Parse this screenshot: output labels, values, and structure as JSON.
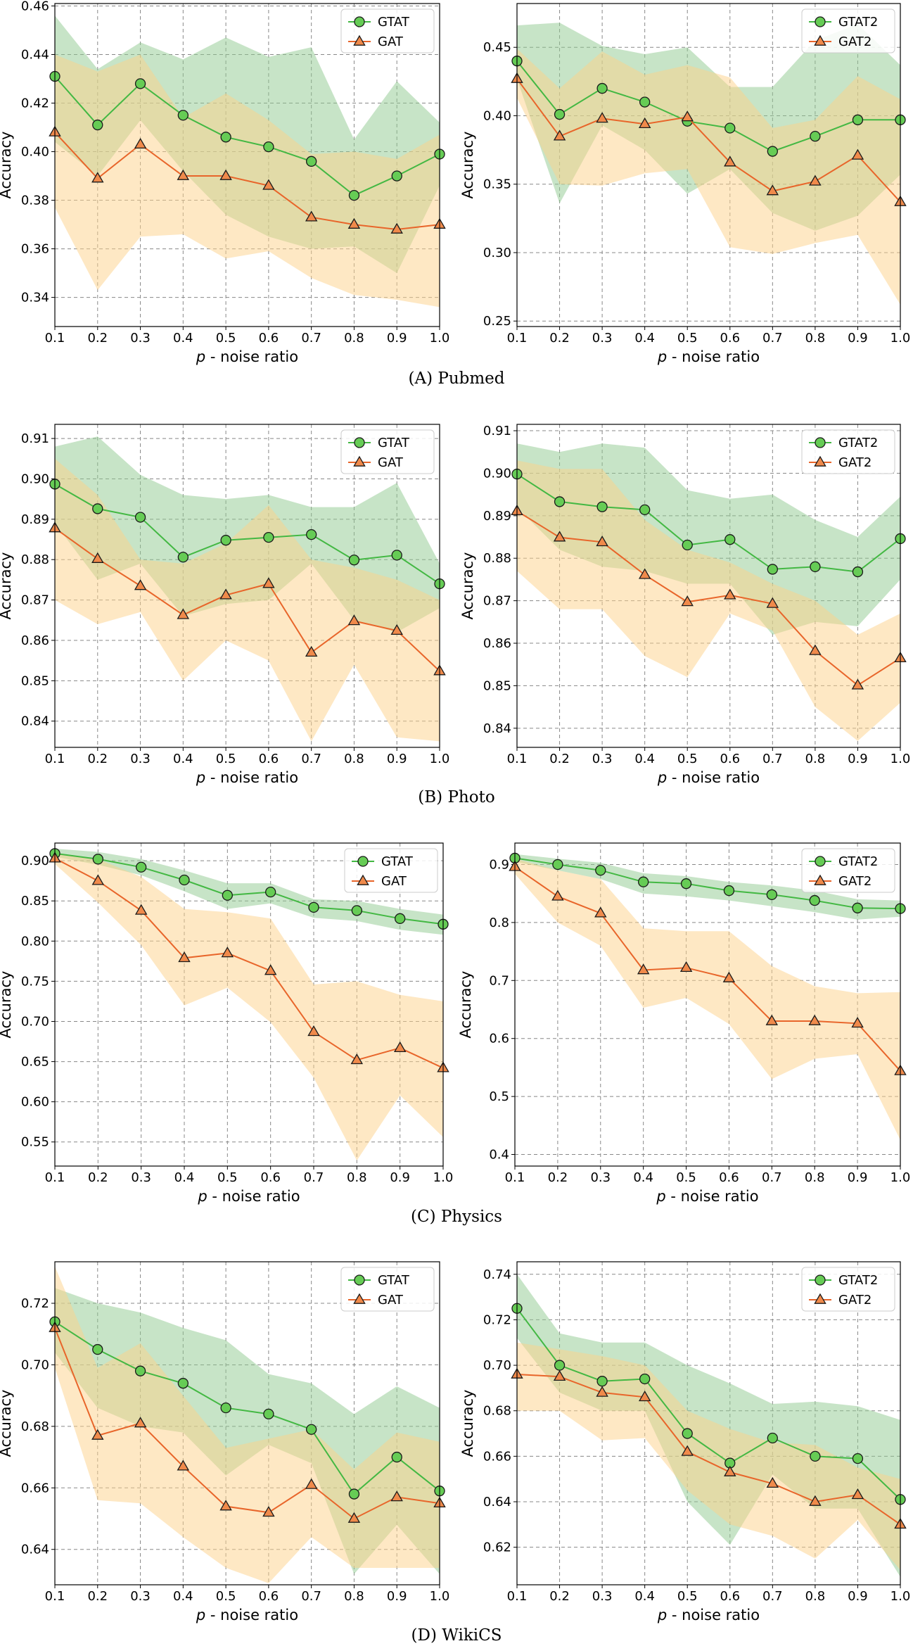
{
  "colors": {
    "green_line": "#43b843",
    "green_marker": "#66cc55",
    "green_band": "#8fc98f",
    "orange_line": "#e8652a",
    "orange_marker": "#f08a4b",
    "orange_band": "#fdd28a"
  },
  "captions": [
    "(A) Pubmed",
    "(B) Photo",
    "(C) Physics",
    "(D) WikiCS"
  ],
  "chart_data": [
    {
      "id": "A-left",
      "type": "line",
      "caption": "(A) Pubmed",
      "xlabel": "p - noise ratio",
      "xlabel_italic": "p",
      "xlabel_rest": " - noise ratio",
      "ylabel": "Accuracy",
      "x": [
        0.1,
        0.2,
        0.3,
        0.4,
        0.5,
        0.6,
        0.7,
        0.8,
        0.9,
        1.0
      ],
      "xticks": [
        "0.1",
        "0.2",
        "0.3",
        "0.4",
        "0.5",
        "0.6",
        "0.7",
        "0.8",
        "0.9",
        "1.0"
      ],
      "ylim": [
        0.328,
        0.461
      ],
      "yticks": [
        0.34,
        0.36,
        0.38,
        0.4,
        0.42,
        0.44,
        0.46
      ],
      "ytick_labels": [
        "0.34",
        "0.36",
        "0.38",
        "0.40",
        "0.42",
        "0.44",
        "0.46"
      ],
      "legend": "top-right",
      "series": [
        {
          "name": "GTAT",
          "marker": "circle",
          "values": [
            0.431,
            0.411,
            0.428,
            0.415,
            0.406,
            0.402,
            0.396,
            0.382,
            0.39,
            0.399
          ],
          "lower": [
            0.404,
            0.39,
            0.413,
            0.392,
            0.374,
            0.365,
            0.36,
            0.361,
            0.35,
            0.386
          ],
          "upper": [
            0.456,
            0.434,
            0.445,
            0.438,
            0.447,
            0.439,
            0.443,
            0.405,
            0.429,
            0.412
          ]
        },
        {
          "name": "GAT",
          "marker": "triangle",
          "values": [
            0.408,
            0.389,
            0.403,
            0.39,
            0.39,
            0.386,
            0.373,
            0.37,
            0.368,
            0.37
          ],
          "lower": [
            0.377,
            0.343,
            0.365,
            0.366,
            0.356,
            0.359,
            0.348,
            0.341,
            0.339,
            0.336
          ],
          "upper": [
            0.44,
            0.433,
            0.44,
            0.414,
            0.424,
            0.413,
            0.399,
            0.4,
            0.397,
            0.407
          ]
        }
      ]
    },
    {
      "id": "A-right",
      "type": "line",
      "caption": "(A) Pubmed",
      "xlabel": "p - noise ratio",
      "xlabel_italic": "p",
      "xlabel_rest": " - noise ratio",
      "ylabel": "Accuracy",
      "x": [
        0.1,
        0.2,
        0.3,
        0.4,
        0.5,
        0.6,
        0.7,
        0.8,
        0.9,
        1.0
      ],
      "xticks": [
        "0.1",
        "0.2",
        "0.3",
        "0.4",
        "0.5",
        "0.6",
        "0.7",
        "0.8",
        "0.9",
        "1.0"
      ],
      "ylim": [
        0.246,
        0.482
      ],
      "yticks": [
        0.25,
        0.3,
        0.35,
        0.4,
        0.45
      ],
      "ytick_labels": [
        "0.25",
        "0.30",
        "0.35",
        "0.40",
        "0.45"
      ],
      "legend": "top-right",
      "series": [
        {
          "name": "GTAT2",
          "marker": "circle",
          "values": [
            0.44,
            0.401,
            0.42,
            0.41,
            0.396,
            0.391,
            0.374,
            0.385,
            0.397,
            0.397
          ],
          "lower": [
            0.427,
            0.336,
            0.393,
            0.375,
            0.343,
            0.361,
            0.329,
            0.316,
            0.327,
            0.357
          ],
          "upper": [
            0.466,
            0.468,
            0.451,
            0.445,
            0.45,
            0.421,
            0.421,
            0.455,
            0.467,
            0.437
          ]
        },
        {
          "name": "GAT2",
          "marker": "triangle",
          "values": [
            0.427,
            0.385,
            0.398,
            0.394,
            0.399,
            0.366,
            0.345,
            0.352,
            0.371,
            0.337
          ],
          "lower": [
            0.413,
            0.35,
            0.349,
            0.358,
            0.361,
            0.304,
            0.299,
            0.307,
            0.313,
            0.262
          ],
          "upper": [
            0.449,
            0.42,
            0.447,
            0.43,
            0.437,
            0.428,
            0.391,
            0.397,
            0.429,
            0.412
          ]
        }
      ]
    },
    {
      "id": "B-left",
      "type": "line",
      "caption": "(B) Photo",
      "xlabel": "p - noise ratio",
      "xlabel_italic": "p",
      "xlabel_rest": " - noise ratio",
      "ylabel": "Accuracy",
      "x": [
        0.1,
        0.2,
        0.3,
        0.4,
        0.5,
        0.6,
        0.7,
        0.8,
        0.9,
        1.0
      ],
      "xticks": [
        "0.1",
        "0.2",
        "0.3",
        "0.4",
        "0.5",
        "0.6",
        "0.7",
        "0.8",
        "0.9",
        "1.0"
      ],
      "ylim": [
        0.8335,
        0.9135
      ],
      "yticks": [
        0.84,
        0.85,
        0.86,
        0.87,
        0.88,
        0.89,
        0.9,
        0.91
      ],
      "ytick_labels": [
        "0.84",
        "0.85",
        "0.86",
        "0.87",
        "0.88",
        "0.89",
        "0.90",
        "0.91"
      ],
      "legend": "top-right",
      "series": [
        {
          "name": "GTAT",
          "marker": "circle",
          "values": [
            0.8987,
            0.8926,
            0.8905,
            0.8806,
            0.8848,
            0.8855,
            0.8862,
            0.8799,
            0.8811,
            0.874
          ],
          "lower": [
            0.889,
            0.875,
            0.879,
            0.866,
            0.869,
            0.87,
            0.879,
            0.865,
            0.862,
            0.868
          ],
          "upper": [
            0.908,
            0.9105,
            0.901,
            0.896,
            0.895,
            0.896,
            0.893,
            0.893,
            0.899,
            0.879
          ]
        },
        {
          "name": "GAT",
          "marker": "triangle",
          "values": [
            0.8878,
            0.8802,
            0.8735,
            0.8663,
            0.8712,
            0.874,
            0.857,
            0.8648,
            0.8624,
            0.8524
          ],
          "lower": [
            0.87,
            0.864,
            0.867,
            0.85,
            0.86,
            0.855,
            0.835,
            0.854,
            0.836,
            0.835
          ],
          "upper": [
            0.905,
            0.896,
            0.88,
            0.879,
            0.884,
            0.8935,
            0.88,
            0.878,
            0.875,
            0.87
          ]
        }
      ]
    },
    {
      "id": "B-right",
      "type": "line",
      "caption": "(B) Photo",
      "xlabel": "p - noise ratio",
      "xlabel_italic": "p",
      "xlabel_rest": " - noise ratio",
      "ylabel": "Accuracy",
      "x": [
        0.1,
        0.2,
        0.3,
        0.4,
        0.5,
        0.6,
        0.7,
        0.8,
        0.9,
        1.0
      ],
      "xticks": [
        "0.1",
        "0.2",
        "0.3",
        "0.4",
        "0.5",
        "0.6",
        "0.7",
        "0.8",
        "0.9",
        "1.0"
      ],
      "ylim": [
        0.8355,
        0.9115
      ],
      "yticks": [
        0.84,
        0.85,
        0.86,
        0.87,
        0.88,
        0.89,
        0.9,
        0.91
      ],
      "ytick_labels": [
        "0.84",
        "0.85",
        "0.86",
        "0.87",
        "0.88",
        "0.89",
        "0.90",
        "0.91"
      ],
      "legend": "top-right",
      "series": [
        {
          "name": "GTAT2",
          "marker": "circle",
          "values": [
            0.8998,
            0.8933,
            0.8921,
            0.8914,
            0.8831,
            0.8844,
            0.8774,
            0.878,
            0.8768,
            0.8846
          ],
          "lower": [
            0.892,
            0.882,
            0.878,
            0.877,
            0.874,
            0.874,
            0.862,
            0.865,
            0.864,
            0.875
          ],
          "upper": [
            0.907,
            0.905,
            0.907,
            0.906,
            0.896,
            0.894,
            0.895,
            0.889,
            0.885,
            0.8945
          ]
        },
        {
          "name": "GAT2",
          "marker": "triangle",
          "values": [
            0.8911,
            0.8849,
            0.8838,
            0.8761,
            0.8697,
            0.8713,
            0.8693,
            0.8582,
            0.8501,
            0.8565
          ],
          "lower": [
            0.877,
            0.868,
            0.868,
            0.857,
            0.852,
            0.867,
            0.863,
            0.845,
            0.837,
            0.846
          ],
          "upper": [
            0.903,
            0.901,
            0.901,
            0.889,
            0.882,
            0.879,
            0.874,
            0.87,
            0.862,
            0.867
          ]
        }
      ]
    },
    {
      "id": "C-left",
      "type": "line",
      "caption": "(C) Physics",
      "xlabel": "p - noise ratio",
      "xlabel_italic": "p",
      "xlabel_rest": " - noise ratio",
      "ylabel": "Accuracy",
      "x": [
        0.1,
        0.2,
        0.3,
        0.4,
        0.5,
        0.6,
        0.7,
        0.8,
        0.9,
        1.0
      ],
      "xticks": [
        "0.1",
        "0.2",
        "0.3",
        "0.4",
        "0.5",
        "0.6",
        "0.7",
        "0.8",
        "0.9",
        "1.0"
      ],
      "ylim": [
        0.52,
        0.922
      ],
      "yticks": [
        0.55,
        0.6,
        0.65,
        0.7,
        0.75,
        0.8,
        0.85,
        0.9
      ],
      "ytick_labels": [
        "0.55",
        "0.60",
        "0.65",
        "0.70",
        "0.75",
        "0.80",
        "0.85",
        "0.90"
      ],
      "legend": "top-right",
      "series": [
        {
          "name": "GTAT",
          "marker": "circle",
          "values": [
            0.909,
            0.902,
            0.892,
            0.876,
            0.857,
            0.861,
            0.842,
            0.838,
            0.828,
            0.821
          ],
          "lower": [
            0.905,
            0.895,
            0.882,
            0.862,
            0.84,
            0.847,
            0.829,
            0.825,
            0.814,
            0.808
          ],
          "upper": [
            0.915,
            0.911,
            0.902,
            0.888,
            0.872,
            0.872,
            0.852,
            0.85,
            0.84,
            0.833
          ]
        },
        {
          "name": "GAT",
          "marker": "triangle",
          "values": [
            0.903,
            0.875,
            0.838,
            0.779,
            0.785,
            0.763,
            0.687,
            0.652,
            0.667,
            0.642
          ],
          "lower": [
            0.896,
            0.848,
            0.795,
            0.72,
            0.742,
            0.699,
            0.63,
            0.527,
            0.608,
            0.556
          ],
          "upper": [
            0.91,
            0.902,
            0.88,
            0.84,
            0.836,
            0.828,
            0.746,
            0.75,
            0.733,
            0.725
          ]
        }
      ]
    },
    {
      "id": "C-right",
      "type": "line",
      "caption": "(C) Physics",
      "xlabel": "p - noise ratio",
      "xlabel_italic": "p",
      "xlabel_rest": " - noise ratio",
      "ylabel": "Accuracy",
      "x": [
        0.1,
        0.2,
        0.3,
        0.4,
        0.5,
        0.6,
        0.7,
        0.8,
        0.9,
        1.0
      ],
      "xticks": [
        "0.1",
        "0.2",
        "0.3",
        "0.4",
        "0.5",
        "0.6",
        "0.7",
        "0.8",
        "0.9",
        "1.0"
      ],
      "ylim": [
        0.38,
        0.937
      ],
      "yticks": [
        0.4,
        0.5,
        0.6,
        0.7,
        0.8,
        0.9
      ],
      "ytick_labels": [
        "0.4",
        "0.5",
        "0.6",
        "0.7",
        "0.8",
        "0.9"
      ],
      "legend": "top-right",
      "series": [
        {
          "name": "GTAT2",
          "marker": "circle",
          "values": [
            0.911,
            0.9,
            0.89,
            0.87,
            0.867,
            0.855,
            0.848,
            0.838,
            0.825,
            0.824
          ],
          "lower": [
            0.905,
            0.89,
            0.875,
            0.85,
            0.845,
            0.838,
            0.828,
            0.818,
            0.805,
            0.81
          ],
          "upper": [
            0.918,
            0.91,
            0.903,
            0.885,
            0.88,
            0.87,
            0.864,
            0.855,
            0.84,
            0.838
          ]
        },
        {
          "name": "GAT2",
          "marker": "triangle",
          "values": [
            0.896,
            0.845,
            0.816,
            0.718,
            0.722,
            0.704,
            0.63,
            0.63,
            0.626,
            0.544
          ],
          "lower": [
            0.884,
            0.8,
            0.76,
            0.653,
            0.67,
            0.625,
            0.53,
            0.565,
            0.573,
            0.425
          ],
          "upper": [
            0.91,
            0.89,
            0.875,
            0.79,
            0.785,
            0.785,
            0.725,
            0.69,
            0.678,
            0.68
          ]
        }
      ]
    },
    {
      "id": "D-left",
      "type": "line",
      "caption": "(D) WikiCS",
      "xlabel": "p - noise ratio",
      "xlabel_italic": "p",
      "xlabel_rest": " - noise ratio",
      "ylabel": "Accuracy",
      "x": [
        0.1,
        0.2,
        0.3,
        0.4,
        0.5,
        0.6,
        0.7,
        0.8,
        0.9,
        1.0
      ],
      "xticks": [
        "0.1",
        "0.2",
        "0.3",
        "0.4",
        "0.5",
        "0.6",
        "0.7",
        "0.8",
        "0.9",
        "1.0"
      ],
      "ylim": [
        0.6285,
        0.7335
      ],
      "yticks": [
        0.64,
        0.66,
        0.68,
        0.7,
        0.72
      ],
      "ytick_labels": [
        "0.64",
        "0.66",
        "0.68",
        "0.70",
        "0.72"
      ],
      "legend": "top-right",
      "series": [
        {
          "name": "GTAT",
          "marker": "circle",
          "values": [
            0.714,
            0.705,
            0.698,
            0.694,
            0.686,
            0.684,
            0.679,
            0.658,
            0.67,
            0.659
          ],
          "lower": [
            0.704,
            0.686,
            0.68,
            0.678,
            0.664,
            0.674,
            0.668,
            0.632,
            0.648,
            0.632
          ],
          "upper": [
            0.725,
            0.72,
            0.717,
            0.712,
            0.708,
            0.697,
            0.694,
            0.684,
            0.693,
            0.686
          ]
        },
        {
          "name": "GAT",
          "marker": "triangle",
          "values": [
            0.712,
            0.677,
            0.681,
            0.667,
            0.654,
            0.652,
            0.661,
            0.65,
            0.657,
            0.655
          ],
          "lower": [
            0.699,
            0.656,
            0.655,
            0.644,
            0.634,
            0.629,
            0.644,
            0.634,
            0.634,
            0.634
          ],
          "upper": [
            0.732,
            0.699,
            0.707,
            0.69,
            0.673,
            0.676,
            0.679,
            0.666,
            0.678,
            0.675
          ]
        }
      ]
    },
    {
      "id": "D-right",
      "type": "line",
      "caption": "(D) WikiCS",
      "xlabel": "p - noise ratio",
      "xlabel_italic": "p",
      "xlabel_rest": " - noise ratio",
      "ylabel": "Accuracy",
      "x": [
        0.1,
        0.2,
        0.3,
        0.4,
        0.5,
        0.6,
        0.7,
        0.8,
        0.9,
        1.0
      ],
      "xticks": [
        "0.1",
        "0.2",
        "0.3",
        "0.4",
        "0.5",
        "0.6",
        "0.7",
        "0.8",
        "0.9",
        "1.0"
      ],
      "ylim": [
        0.6035,
        0.7455
      ],
      "yticks": [
        0.62,
        0.64,
        0.66,
        0.68,
        0.7,
        0.72,
        0.74
      ],
      "ytick_labels": [
        "0.62",
        "0.64",
        "0.66",
        "0.68",
        "0.70",
        "0.72",
        "0.74"
      ],
      "legend": "top-right",
      "series": [
        {
          "name": "GTAT2",
          "marker": "circle",
          "values": [
            0.725,
            0.7,
            0.693,
            0.694,
            0.67,
            0.657,
            0.668,
            0.66,
            0.659,
            0.641
          ],
          "lower": [
            0.712,
            0.688,
            0.68,
            0.68,
            0.64,
            0.621,
            0.652,
            0.637,
            0.637,
            0.607
          ],
          "upper": [
            0.74,
            0.714,
            0.71,
            0.71,
            0.7,
            0.692,
            0.683,
            0.684,
            0.682,
            0.676
          ]
        },
        {
          "name": "GAT2",
          "marker": "triangle",
          "values": [
            0.696,
            0.695,
            0.688,
            0.686,
            0.662,
            0.653,
            0.648,
            0.64,
            0.643,
            0.63
          ],
          "lower": [
            0.68,
            0.68,
            0.667,
            0.668,
            0.645,
            0.63,
            0.625,
            0.615,
            0.632,
            0.61
          ],
          "upper": [
            0.71,
            0.707,
            0.704,
            0.7,
            0.68,
            0.672,
            0.666,
            0.665,
            0.655,
            0.65
          ]
        }
      ]
    }
  ]
}
